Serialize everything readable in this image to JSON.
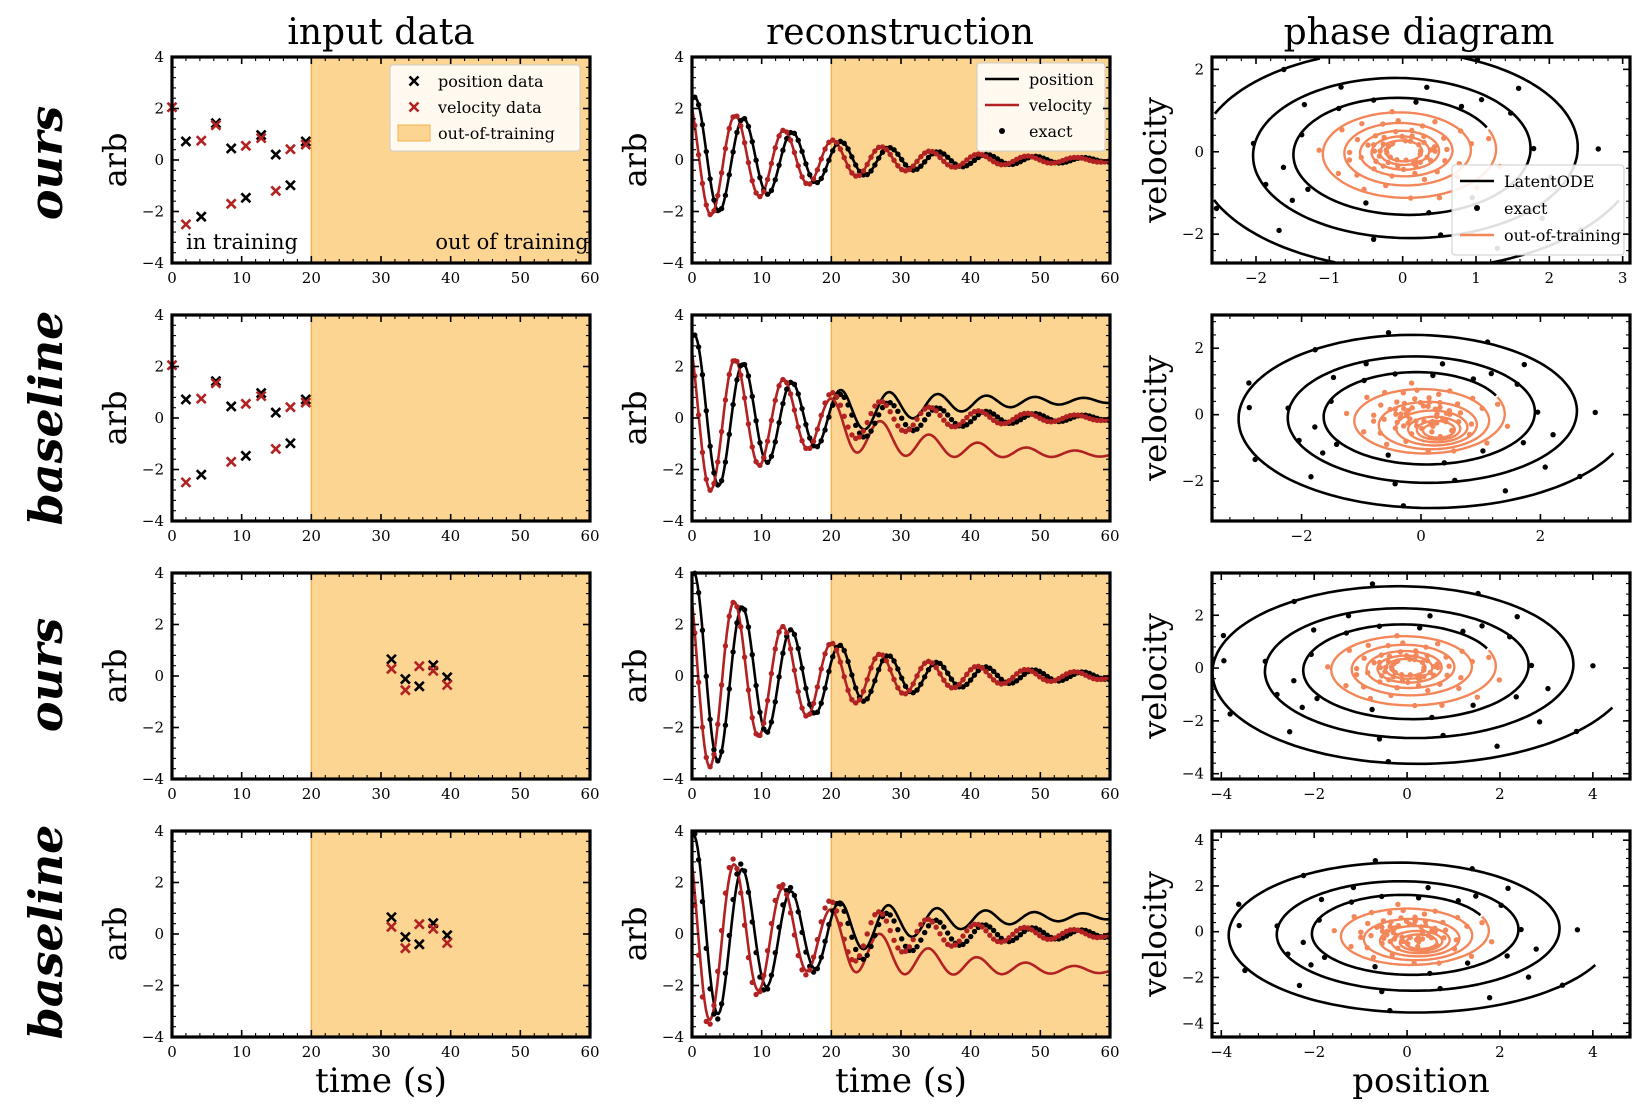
{
  "figure": {
    "column_titles": [
      "input data",
      "reconstruction",
      "phase diagram"
    ],
    "row_labels": [
      "ours",
      "baseline",
      "ours",
      "baseline"
    ],
    "xlabel_time": "time (s)",
    "xlabel_position": "position",
    "ylabel_arb": "arb",
    "ylabel_velocity": "velocity",
    "annotations": {
      "in_training": "in training",
      "out_of_training": "out of training"
    },
    "colors": {
      "position": "#000000",
      "velocity": "#b22222",
      "shade": "#fdd592",
      "shade_edge": "#f2b350",
      "phase_out": "#f4875a"
    }
  },
  "chart_data": [
    {
      "type": "scatter",
      "panel": "row1-input",
      "title": "input data",
      "xlabel": "",
      "ylabel": "arb",
      "xlim": [
        0,
        60
      ],
      "ylim": [
        -4,
        4
      ],
      "xticks": [
        0,
        10,
        20,
        30,
        40,
        50,
        60
      ],
      "yticks": [
        -4,
        -2,
        0,
        2,
        4
      ],
      "shade": [
        20,
        60
      ],
      "series": [
        {
          "name": "position data",
          "x": [
            2,
            4.2,
            6.3,
            8.5,
            10.6,
            12.8,
            14.9,
            17.0,
            19.2
          ],
          "y": [
            0.72,
            -2.2,
            1.43,
            0.45,
            -1.47,
            0.97,
            0.21,
            -0.98,
            0.72
          ]
        },
        {
          "name": "velocity data",
          "x": [
            0,
            2,
            4.2,
            6.3,
            8.5,
            10.6,
            12.8,
            14.9,
            17.0,
            19.2
          ],
          "y": [
            2.05,
            -2.5,
            0.75,
            1.35,
            -1.7,
            0.55,
            0.85,
            -1.2,
            0.42,
            0.6
          ]
        }
      ],
      "legend": [
        "position data",
        "velocity data",
        "out-of-training"
      ],
      "legend_loc": "top-right",
      "annotations": [
        "in training",
        "out of training"
      ]
    },
    {
      "type": "line",
      "panel": "row1-reconstruction",
      "title": "reconstruction",
      "xlabel": "",
      "ylabel": "arb",
      "xlim": [
        0,
        60
      ],
      "ylim": [
        -4,
        4
      ],
      "xticks": [
        0,
        10,
        20,
        30,
        40,
        50,
        60
      ],
      "yticks": [
        -4,
        -2,
        0,
        2,
        4
      ],
      "shade": [
        20,
        60
      ],
      "model": {
        "amplitude": 2.5,
        "decay": 0.058,
        "omega": 0.9,
        "pos_phase": 1.15,
        "vel_lead": 1.05,
        "pos_drift": 0,
        "vel_drift": 0
      },
      "exact": {
        "amplitude": 2.5,
        "decay": 0.058,
        "omega": 0.9,
        "pos_phase": 1.15,
        "vel_lead": 1.05,
        "step": 0.55
      },
      "series": [
        {
          "name": "position"
        },
        {
          "name": "velocity"
        },
        {
          "name": "exact"
        }
      ],
      "legend": [
        "position",
        "velocity",
        "exact"
      ],
      "legend_loc": "top-right"
    },
    {
      "type": "line",
      "panel": "row1-phase",
      "title": "phase diagram",
      "xlabel": "",
      "ylabel": "velocity",
      "xlim": [
        -2.6,
        3.1
      ],
      "ylim": [
        -2.7,
        2.3
      ],
      "xticks": [
        -2,
        -1,
        0,
        1,
        2,
        3
      ],
      "yticks": [
        -2,
        0,
        2
      ],
      "spiral": {
        "r_start": 3.2,
        "decay": 0.045,
        "ellipse": 1.0,
        "t_train": 20,
        "t_end": 60,
        "vertical_ratio": 0.95
      },
      "series": [
        {
          "name": "LatentODE"
        },
        {
          "name": "exact"
        },
        {
          "name": "out-of-training"
        }
      ],
      "legend": [
        "LatentODE",
        "exact",
        "out-of-training"
      ],
      "legend_loc": "bottom-right"
    },
    {
      "type": "scatter",
      "panel": "row2-input",
      "xlabel": "",
      "ylabel": "arb",
      "xlim": [
        0,
        60
      ],
      "ylim": [
        -4,
        4
      ],
      "xticks": [
        0,
        10,
        20,
        30,
        40,
        50,
        60
      ],
      "yticks": [
        -4,
        -2,
        0,
        2,
        4
      ],
      "shade": [
        20,
        60
      ],
      "series": [
        {
          "name": "position data",
          "x": [
            2,
            4.2,
            6.3,
            8.5,
            10.6,
            12.8,
            14.9,
            17.0,
            19.2
          ],
          "y": [
            0.72,
            -2.2,
            1.43,
            0.45,
            -1.47,
            0.97,
            0.21,
            -0.98,
            0.72
          ]
        },
        {
          "name": "velocity data",
          "x": [
            0,
            2,
            4.2,
            6.3,
            8.5,
            10.6,
            12.8,
            14.9,
            17.0,
            19.2
          ],
          "y": [
            2.05,
            -2.5,
            0.75,
            1.35,
            -1.7,
            0.55,
            0.85,
            -1.2,
            0.42,
            0.6
          ]
        }
      ]
    },
    {
      "type": "line",
      "panel": "row2-reconstruction",
      "xlabel": "",
      "ylabel": "arb",
      "xlim": [
        0,
        60
      ],
      "ylim": [
        -4,
        4
      ],
      "xticks": [
        0,
        10,
        20,
        30,
        40,
        50,
        60
      ],
      "yticks": [
        -4,
        -2,
        0,
        2,
        4
      ],
      "shade": [
        20,
        60
      ],
      "model": {
        "amplitude": 3.3,
        "decay": 0.06,
        "omega": 0.9,
        "pos_phase": 1.2,
        "vel_lead": 1.05,
        "pos_drift": 0.7,
        "vel_drift": -1.45
      },
      "exact": {
        "amplitude": 3.3,
        "decay": 0.06,
        "omega": 0.9,
        "pos_phase": 1.2,
        "vel_lead": 1.05,
        "step": 0.55
      },
      "series": [
        {
          "name": "position"
        },
        {
          "name": "velocity"
        },
        {
          "name": "exact"
        }
      ]
    },
    {
      "type": "line",
      "panel": "row2-phase",
      "xlabel": "",
      "ylabel": "velocity",
      "xlim": [
        -3.5,
        3.5
      ],
      "ylim": [
        -3.2,
        3.0
      ],
      "xticks": [
        -2,
        0,
        2
      ],
      "yticks": [
        -2,
        0,
        2
      ],
      "spiral": {
        "r_start": 3.5,
        "decay": 0.045,
        "ellipse": 1.0,
        "t_train": 20,
        "t_end": 60,
        "vertical_ratio": 0.85,
        "drift_x": 0.6,
        "drift_y": -1.0
      },
      "series": [
        {
          "name": "LatentODE"
        },
        {
          "name": "exact"
        },
        {
          "name": "out-of-training"
        }
      ]
    },
    {
      "type": "scatter",
      "panel": "row3-input",
      "xlabel": "",
      "ylabel": "arb",
      "xlim": [
        0,
        60
      ],
      "ylim": [
        -4,
        4
      ],
      "xticks": [
        0,
        10,
        20,
        30,
        40,
        50,
        60
      ],
      "yticks": [
        -4,
        -2,
        0,
        2,
        4
      ],
      "shade": [
        20,
        60
      ],
      "series": [
        {
          "name": "position data",
          "x": [
            31.5,
            33.5,
            35.5,
            37.5,
            39.5
          ],
          "y": [
            0.65,
            -0.12,
            -0.4,
            0.42,
            -0.05
          ]
        },
        {
          "name": "velocity data",
          "x": [
            31.5,
            33.5,
            35.5,
            37.5,
            39.5
          ],
          "y": [
            0.28,
            -0.55,
            0.38,
            0.2,
            -0.35
          ]
        }
      ]
    },
    {
      "type": "line",
      "panel": "row3-reconstruction",
      "xlabel": "",
      "ylabel": "arb",
      "xlim": [
        0,
        60
      ],
      "ylim": [
        -4,
        4
      ],
      "xticks": [
        0,
        10,
        20,
        30,
        40,
        50,
        60
      ],
      "yticks": [
        -4,
        -2,
        0,
        2,
        4
      ],
      "shade": [
        20,
        60
      ],
      "model": {
        "amplitude": 4.1,
        "decay": 0.058,
        "omega": 0.9,
        "pos_phase": 1.3,
        "vel_lead": 1.05,
        "pos_drift": 0,
        "vel_drift": 0
      },
      "exact": {
        "amplitude": 4.1,
        "decay": 0.058,
        "omega": 0.9,
        "pos_phase": 1.3,
        "vel_lead": 1.05,
        "step": 0.55
      },
      "series": [
        {
          "name": "position"
        },
        {
          "name": "velocity"
        },
        {
          "name": "exact"
        }
      ]
    },
    {
      "type": "line",
      "panel": "row3-phase",
      "xlabel": "",
      "ylabel": "velocity",
      "xlim": [
        -4.2,
        4.8
      ],
      "ylim": [
        -4.2,
        3.6
      ],
      "xticks": [
        -4,
        -2,
        0,
        2,
        4
      ],
      "yticks": [
        -4,
        -2,
        0,
        2
      ],
      "spiral": {
        "r_start": 4.8,
        "decay": 0.045,
        "ellipse": 1.0,
        "t_train": 20,
        "t_end": 60,
        "vertical_ratio": 0.8
      },
      "series": [
        {
          "name": "LatentODE"
        },
        {
          "name": "exact"
        },
        {
          "name": "out-of-training"
        }
      ]
    },
    {
      "type": "scatter",
      "panel": "row4-input",
      "xlabel": "time (s)",
      "ylabel": "arb",
      "xlim": [
        0,
        60
      ],
      "ylim": [
        -4,
        4
      ],
      "xticks": [
        0,
        10,
        20,
        30,
        40,
        50,
        60
      ],
      "yticks": [
        -4,
        -2,
        0,
        2,
        4
      ],
      "shade": [
        20,
        60
      ],
      "series": [
        {
          "name": "position data",
          "x": [
            31.5,
            33.5,
            35.5,
            37.5,
            39.5
          ],
          "y": [
            0.65,
            -0.12,
            -0.4,
            0.42,
            -0.05
          ]
        },
        {
          "name": "velocity data",
          "x": [
            31.5,
            33.5,
            35.5,
            37.5,
            39.5
          ],
          "y": [
            0.28,
            -0.55,
            0.38,
            0.2,
            -0.35
          ]
        }
      ]
    },
    {
      "type": "line",
      "panel": "row4-reconstruction",
      "xlabel": "time (s)",
      "ylabel": "arb",
      "xlim": [
        0,
        60
      ],
      "ylim": [
        -4,
        4
      ],
      "xticks": [
        0,
        10,
        20,
        30,
        40,
        50,
        60
      ],
      "yticks": [
        -4,
        -2,
        0,
        2,
        4
      ],
      "shade": [
        20,
        60
      ],
      "model": {
        "amplitude": 3.9,
        "decay": 0.06,
        "omega": 0.9,
        "pos_phase": 1.3,
        "vel_lead": 1.05,
        "pos_drift": 0.7,
        "vel_drift": -1.45
      },
      "exact": {
        "amplitude": 4.1,
        "decay": 0.058,
        "omega": 0.9,
        "pos_phase": 1.45,
        "vel_lead": 1.05,
        "step": 0.55
      },
      "series": [
        {
          "name": "position"
        },
        {
          "name": "velocity"
        },
        {
          "name": "exact"
        }
      ]
    },
    {
      "type": "line",
      "panel": "row4-phase",
      "xlabel": "position",
      "ylabel": "velocity",
      "xlim": [
        -4.2,
        4.8
      ],
      "ylim": [
        -4.6,
        4.4
      ],
      "xticks": [
        -4,
        -2,
        0,
        2,
        4
      ],
      "yticks": [
        -4,
        -2,
        0,
        2,
        4
      ],
      "spiral": {
        "r_start": 4.4,
        "decay": 0.045,
        "ellipse": 1.0,
        "t_train": 20,
        "t_end": 60,
        "vertical_ratio": 0.85,
        "drift_x": 0.6,
        "drift_y": -1.0
      },
      "series": [
        {
          "name": "LatentODE"
        },
        {
          "name": "exact"
        },
        {
          "name": "out-of-training"
        }
      ]
    }
  ]
}
